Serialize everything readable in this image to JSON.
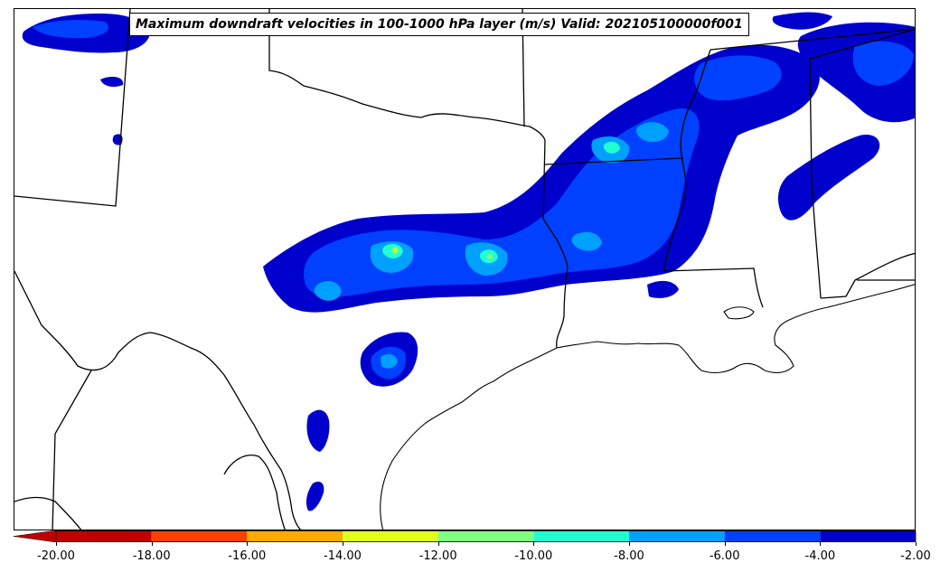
{
  "title": "Maximum downdraft velocities in 100-1000 hPa layer (m/s) Valid: 202105100000f001",
  "colorbar": {
    "ticks": [
      "-20.00",
      "-18.00",
      "-16.00",
      "-14.00",
      "-12.00",
      "-10.00",
      "-8.00",
      "-6.00",
      "-4.00",
      "-2.00"
    ],
    "min": -20,
    "max": -2,
    "extend": "min",
    "bins": [
      {
        "from": -20,
        "to": -18,
        "color": "#c00000"
      },
      {
        "from": -18,
        "to": -16,
        "color": "#ff4000"
      },
      {
        "from": -16,
        "to": -14,
        "color": "#ffaa00"
      },
      {
        "from": -14,
        "to": -12,
        "color": "#e0ff20"
      },
      {
        "from": -12,
        "to": -10,
        "color": "#80ff80"
      },
      {
        "from": -10,
        "to": -8,
        "color": "#20ffd0"
      },
      {
        "from": -8,
        "to": -6,
        "color": "#00a0ff"
      },
      {
        "from": -6,
        "to": -4,
        "color": "#0040ff"
      },
      {
        "from": -4,
        "to": -2,
        "color": "#0000cc"
      }
    ]
  },
  "colors": {
    "weak": "#0000cc",
    "moderate": "#0040ff",
    "strong": "#00a0ff",
    "very_strong": "#20ffd0",
    "extreme": "#80ff80",
    "peak": "#e0ff20",
    "boundaries": "#000000"
  }
}
